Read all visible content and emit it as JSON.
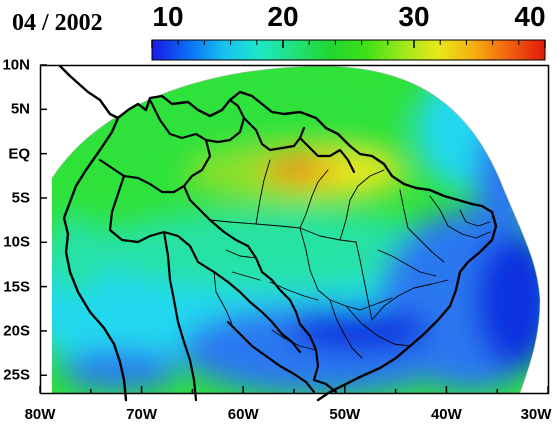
{
  "title": "04 / 2002",
  "colorbar": {
    "ticks": [
      "10",
      "20",
      "30",
      "40"
    ],
    "tick_values": [
      10,
      20,
      30,
      40
    ],
    "range": [
      10,
      40
    ],
    "colors": [
      "#1a1ae6",
      "#0a6cf5",
      "#18bff0",
      "#1ee8c8",
      "#22e07a",
      "#22d631",
      "#3fe018",
      "#9be81a",
      "#e8e81a",
      "#f7b010",
      "#f26010",
      "#e01a0a"
    ]
  },
  "map": {
    "lat_labels": [
      "10N",
      "5N",
      "EQ",
      "5S",
      "10S",
      "15S",
      "20S",
      "25S"
    ],
    "lat_values": [
      10,
      5,
      0,
      -5,
      -10,
      -15,
      -20,
      -25
    ],
    "lon_labels": [
      "80W",
      "70W",
      "60W",
      "50W",
      "40W",
      "30W"
    ],
    "lon_values": [
      -80,
      -70,
      -60,
      -50,
      -40,
      -30
    ],
    "extent": {
      "lon": [
        -80,
        -30
      ],
      "lat": [
        -27,
        10
      ]
    },
    "ocean_color": "#ffffff",
    "border_color": "#000000",
    "field_colors": {
      "low_blue": "#1133e0",
      "blue": "#2a78f0",
      "cyan": "#22d8ee",
      "aqua_green": "#25e2a5",
      "green": "#2fe23a",
      "light_green": "#8fe02c",
      "yellow": "#f2e81c",
      "orange": "#f59a14",
      "red": "#e62a10"
    }
  }
}
